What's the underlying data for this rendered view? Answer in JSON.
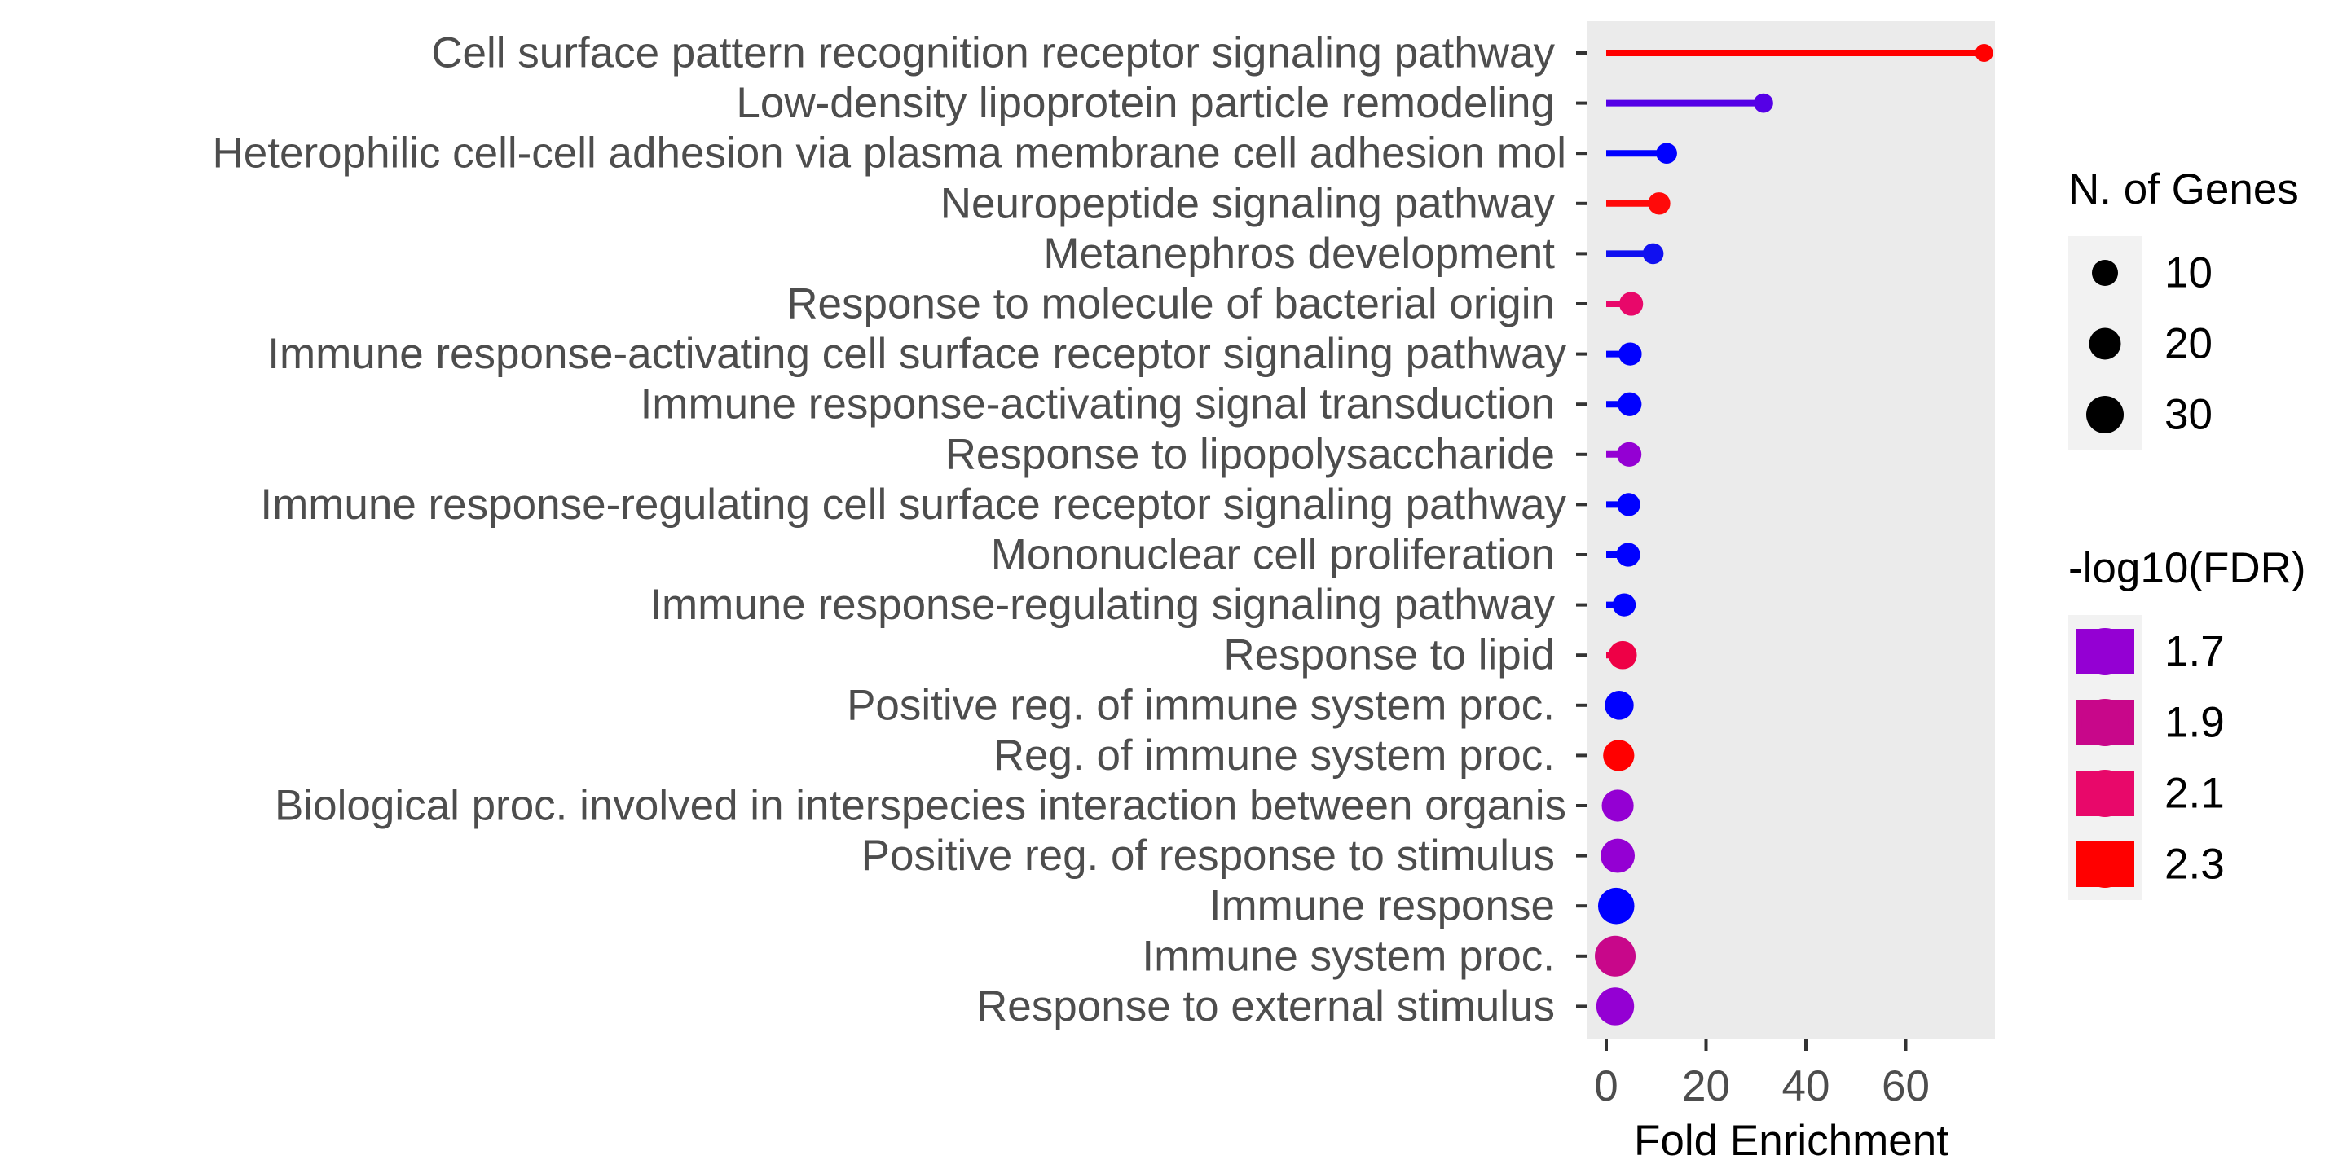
{
  "chart_data": {
    "type": "scatter",
    "subtype": "lollipop",
    "title": "",
    "xlabel": "Fold Enrichment",
    "ylabel": "",
    "xlim": [
      -3,
      79
    ],
    "xticks": [
      0,
      20,
      40,
      60
    ],
    "grid": false,
    "panel_background": "#ebebeb",
    "legend_position": "right",
    "categories": [
      "Cell surface pattern recognition receptor signaling pathway",
      "Low-density lipoprotein particle remodeling",
      "Heterophilic cell-cell adhesion via plasma membrane cell adhesion mol",
      "Neuropeptide signaling pathway",
      "Metanephros development",
      "Response to molecule of bacterial origin",
      "Immune response-activating cell surface receptor signaling pathway",
      "Immune response-activating signal transduction",
      "Response to lipopolysaccharide",
      "Immune response-regulating cell surface receptor signaling pathway",
      "Mononuclear cell proliferation",
      "Immune response-regulating signaling pathway",
      "Response to lipid",
      "Positive reg. of immune system proc.",
      "Reg. of immune system proc.",
      "Biological proc. involved in interspecies interaction between organis",
      "Positive reg. of response to stimulus",
      "Immune response",
      "Immune system proc.",
      "Response to external stimulus"
    ],
    "fold_enrichment": [
      75.7,
      31.5,
      12.1,
      10.6,
      9.4,
      5.0,
      4.8,
      4.7,
      4.6,
      4.5,
      4.4,
      3.6,
      3.3,
      2.6,
      2.5,
      2.3,
      2.3,
      2.0,
      1.8,
      1.8
    ],
    "n_genes": [
      3,
      5,
      7,
      9,
      7,
      11,
      10,
      11,
      12,
      10,
      11,
      10,
      17,
      18,
      21,
      22,
      25,
      28,
      34,
      30
    ],
    "neg_log10_fdr": [
      2.4,
      1.65,
      1.5,
      2.35,
      1.45,
      2.1,
      1.45,
      1.45,
      1.7,
      1.45,
      1.45,
      1.45,
      2.15,
      1.45,
      2.35,
      1.7,
      1.7,
      1.45,
      1.95,
      1.7
    ],
    "point_colors": [
      "#ff0000",
      "#5500e6",
      "#0000ff",
      "#ff0a0a",
      "#1010f0",
      "#e8086a",
      "#0000ff",
      "#0000ff",
      "#9400d3",
      "#0000ff",
      "#0000ff",
      "#0000ff",
      "#ee0046",
      "#0000ff",
      "#ff0000",
      "#9400d3",
      "#9400d3",
      "#0000ff",
      "#c8078a",
      "#9400d3"
    ],
    "legend_size": {
      "title": "N. of Genes",
      "labels": [
        "10",
        "20",
        "30"
      ],
      "values": [
        10,
        20,
        30
      ]
    },
    "legend_color": {
      "title": "-log10(FDR)",
      "labels": [
        "1.7",
        "1.9",
        "2.1",
        "2.3"
      ],
      "values": [
        1.7,
        1.9,
        2.1,
        2.3
      ],
      "colors": [
        "#9400d3",
        "#c8078a",
        "#e8086a",
        "#ff0000"
      ]
    }
  }
}
